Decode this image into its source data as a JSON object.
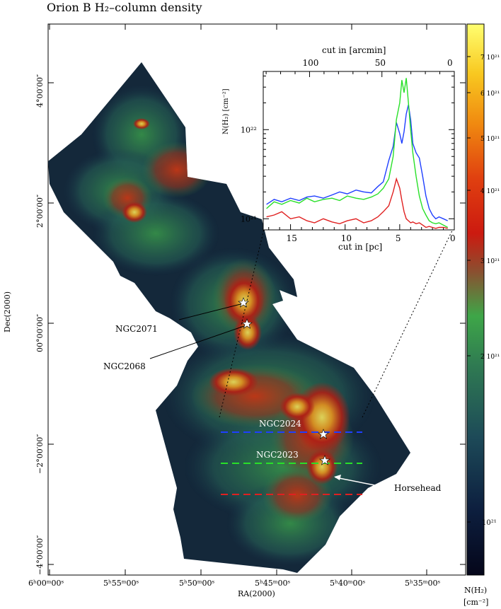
{
  "title": "Orion B H₂–column density",
  "main_map": {
    "xlabel": "RA(2000)",
    "ylabel": "Dec(2000)",
    "x_ticks": [
      {
        "label": "6ʰ00ᵐ00ˢ"
      },
      {
        "label": "5ʰ55ᵐ00ˢ"
      },
      {
        "label": "5ʰ50ᵐ00ˢ"
      },
      {
        "label": "5ʰ45ᵐ00ˢ"
      },
      {
        "label": "5ʰ40ᵐ00ˢ"
      },
      {
        "label": "5ʰ35ᵐ00ˢ"
      }
    ],
    "y_ticks": [
      {
        "label": "4°00′00″"
      },
      {
        "label": "2°00′00″"
      },
      {
        "label": "00°00′00″"
      },
      {
        "label": "−2°00′00″"
      },
      {
        "label": "−4°00′00″"
      }
    ],
    "annotations": [
      {
        "label": "NGC2071"
      },
      {
        "label": "NGC2068"
      },
      {
        "label": "NGC2024"
      },
      {
        "label": "NGC2023"
      },
      {
        "label": "Horsehead"
      }
    ],
    "cut_colors": {
      "blue": "#1f3fff",
      "green": "#28e028",
      "red": "#e02020"
    }
  },
  "colorbar": {
    "title_line1": "N(H₂)",
    "title_line2": "[cm⁻²]",
    "ticks": [
      {
        "label": "7 10²¹"
      },
      {
        "label": "6 10²¹"
      },
      {
        "label": "5 10²¹"
      },
      {
        "label": "4 10²¹"
      },
      {
        "label": "3 10²¹"
      },
      {
        "label": "2 10²¹"
      },
      {
        "label": "10²¹"
      }
    ]
  },
  "chart_data": {
    "type": "line",
    "title": "",
    "xlabel": "cut in [pc]",
    "xlabel_top": "cut in [arcmin]",
    "ylabel": "N(H₂) [cm⁻²]",
    "xlim": [
      17.5,
      0
    ],
    "xlim_top_arcmin": [
      132,
      0
    ],
    "ylim": [
      7.5e+20,
      4.5e+22
    ],
    "yscale": "log",
    "x_tick_labels": [
      "15",
      "10",
      "5",
      "0"
    ],
    "x_top_tick_labels": [
      "100",
      "50",
      "0"
    ],
    "y_tick_labels": [
      "10²²",
      "10²¹"
    ],
    "series": [
      {
        "color": "#1f3fff",
        "x": [
          17.2,
          16.5,
          15.8,
          15.0,
          14.2,
          13.5,
          12.8,
          12.0,
          11.2,
          10.5,
          9.8,
          9.0,
          8.3,
          7.6,
          7.0,
          6.5,
          6.0,
          5.6,
          5.3,
          5.0,
          4.8,
          4.6,
          4.4,
          4.2,
          4.0,
          3.8,
          3.5,
          3.2,
          2.9,
          2.6,
          2.3,
          2.0,
          1.7,
          1.4,
          1.0,
          0.6
        ],
        "y": [
          1.45e+21,
          1.65e+21,
          1.55e+21,
          1.7e+21,
          1.6e+21,
          1.75e+21,
          1.8e+21,
          1.7e+21,
          1.85e+21,
          2e+21,
          1.9e+21,
          2.1e+21,
          2e+21,
          1.95e+21,
          2.3e+21,
          2.6e+21,
          4.5e+21,
          6.5e+21,
          1.2e+22,
          9e+21,
          7e+21,
          9.5e+21,
          1.5e+22,
          1.9e+22,
          1.3e+22,
          7e+21,
          5.5e+21,
          4.8e+21,
          3e+21,
          1.8e+21,
          1.3e+21,
          1.1e+21,
          1e+21,
          1.05e+21,
          1e+21,
          9.5e+20
        ]
      },
      {
        "color": "#28e028",
        "x": [
          17.2,
          16.5,
          15.8,
          15.0,
          14.2,
          13.5,
          12.8,
          12.0,
          11.2,
          10.5,
          9.8,
          9.0,
          8.3,
          7.6,
          7.0,
          6.5,
          6.0,
          5.6,
          5.3,
          5.0,
          4.8,
          4.6,
          4.4,
          4.2,
          4.0,
          3.8,
          3.5,
          3.2,
          2.9,
          2.6,
          2.3,
          2.0,
          1.7,
          1.4,
          1.0,
          0.6
        ],
        "y": [
          1.3e+21,
          1.55e+21,
          1.45e+21,
          1.6e+21,
          1.5e+21,
          1.7e+21,
          1.55e+21,
          1.65e+21,
          1.7e+21,
          1.6e+21,
          1.8e+21,
          1.7e+21,
          1.65e+21,
          1.75e+21,
          1.9e+21,
          2.2e+21,
          2.8e+21,
          5e+21,
          1.3e+22,
          2e+22,
          3.6e+22,
          2.6e+22,
          3.8e+22,
          2e+22,
          1e+22,
          5.5e+21,
          3e+21,
          1.8e+21,
          1.3e+21,
          1.1e+21,
          9.5e+20,
          9e+20,
          8.8e+20,
          9e+20,
          8.5e+20,
          8e+20
        ]
      },
      {
        "color": "#e02020",
        "x": [
          17.2,
          16.5,
          15.8,
          15.0,
          14.2,
          13.5,
          12.8,
          12.0,
          11.2,
          10.5,
          9.8,
          9.0,
          8.3,
          7.6,
          7.0,
          6.5,
          6.0,
          5.6,
          5.3,
          5.0,
          4.8,
          4.6,
          4.4,
          4.2,
          4.0,
          3.8,
          3.5,
          3.2,
          2.9,
          2.6,
          2.3,
          2.0,
          1.7,
          1.4,
          1.0,
          0.6
        ],
        "y": [
          1.05e+21,
          1.1e+21,
          1.2e+21,
          1e+21,
          1.05e+21,
          9.5e+20,
          9e+20,
          1e+21,
          9.2e+20,
          8.8e+20,
          9.5e+20,
          1e+21,
          9e+20,
          9.5e+20,
          1.05e+21,
          1.2e+21,
          1.4e+21,
          2e+21,
          2.8e+21,
          2.2e+21,
          1.6e+21,
          1.2e+21,
          1e+21,
          9.5e+20,
          9e+20,
          9.2e+20,
          8.8e+20,
          9e+20,
          8.5e+20,
          8e+20,
          8.2e+20,
          8e+20,
          7.8e+20,
          8e+20,
          8e+20,
          7.8e+20
        ]
      }
    ]
  }
}
